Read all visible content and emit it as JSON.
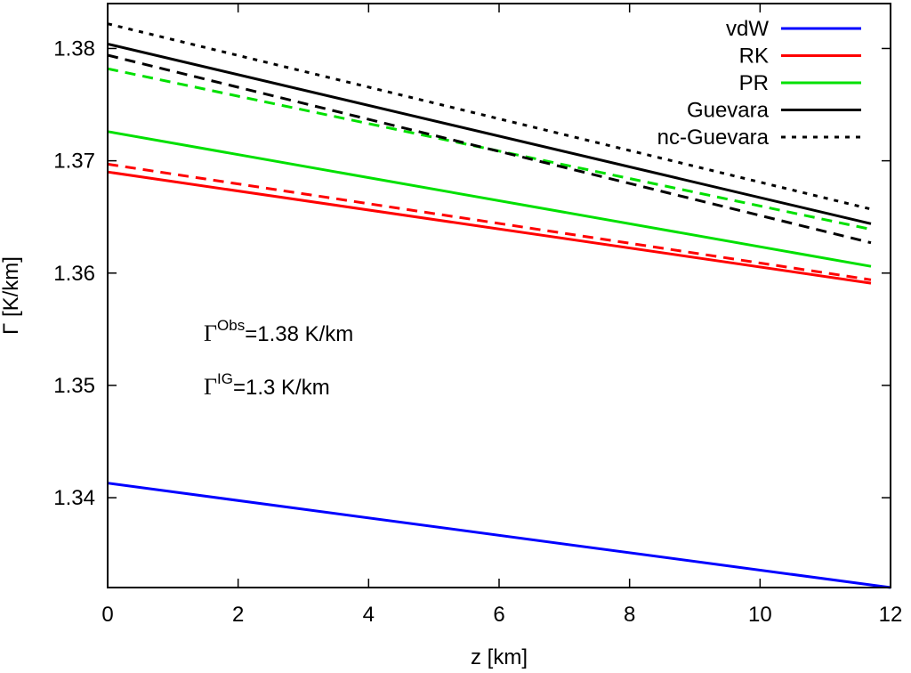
{
  "chart_data": {
    "type": "line",
    "xlabel": "z [km]",
    "ylabel": "Γ [K/km]",
    "xlim": [
      0,
      12
    ],
    "ylim": [
      1.332,
      1.384
    ],
    "xticks": [
      0,
      2,
      4,
      6,
      8,
      10,
      12
    ],
    "yticks": [
      1.34,
      1.35,
      1.36,
      1.37,
      1.38
    ],
    "ytick_labels": [
      "1.34",
      "1.35",
      "1.36",
      "1.37",
      "1.38"
    ],
    "grid": false,
    "legend_position": "top-right",
    "series": [
      {
        "name": "vdW",
        "color": "#0000ff",
        "dash": "solid",
        "x": [
          0,
          12
        ],
        "y": [
          1.3413,
          1.332
        ]
      },
      {
        "name": "RK",
        "color": "#ff0000",
        "dash": "solid",
        "x": [
          0,
          11.7
        ],
        "y": [
          1.369,
          1.3591
        ]
      },
      {
        "name": "PR",
        "color": "#00e000",
        "dash": "solid",
        "x": [
          0,
          11.7
        ],
        "y": [
          1.3726,
          1.3606
        ]
      },
      {
        "name": "Guevara",
        "color": "#000000",
        "dash": "solid",
        "x": [
          0,
          11.7
        ],
        "y": [
          1.3804,
          1.3644
        ]
      },
      {
        "name": "nc-Guevara",
        "color": "#000000",
        "dash": "dotted",
        "x": [
          0,
          11.7
        ],
        "y": [
          1.3822,
          1.3657
        ]
      }
    ],
    "extra_series": [
      {
        "color": "#ff0000",
        "dash": "dashed",
        "x": [
          0,
          11.7
        ],
        "y": [
          1.3697,
          1.3594
        ]
      },
      {
        "color": "#00e000",
        "dash": "dashed",
        "x": [
          0,
          11.7
        ],
        "y": [
          1.3782,
          1.3639
        ]
      },
      {
        "color": "#000000",
        "dash": "dashed",
        "x": [
          0,
          11.7
        ],
        "y": [
          1.3794,
          1.3627
        ]
      }
    ],
    "annotations": [
      {
        "symbol": "Γ",
        "sup": "Obs",
        "text": "=1.38 K/km"
      },
      {
        "symbol": "Γ",
        "sup": "IG",
        "text": "=1.3 K/km"
      }
    ]
  }
}
